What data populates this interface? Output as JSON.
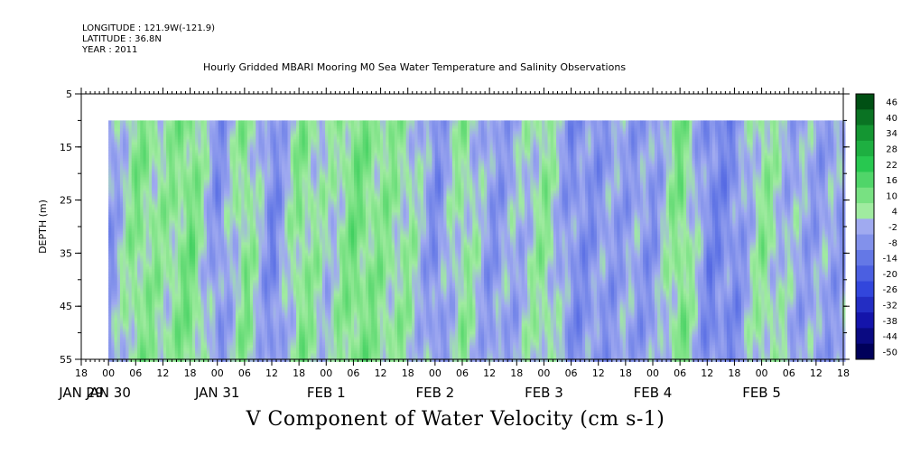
{
  "header": {
    "longitude": "LONGITUDE : 121.9W(-121.9)",
    "latitude": "LATITUDE : 36.8N",
    "year": "YEAR : 2011",
    "title": "Hourly Gridded MBARI Mooring M0 Sea Water Temperature and Salinity Observations"
  },
  "footer": {
    "variable": "V Component of Water Velocity (cm s-1)"
  },
  "chart_data": {
    "type": "heatmap",
    "title": "Hourly Gridded MBARI Mooring M0 Sea Water Temperature and Salinity Observations",
    "ylabel": "DEPTH (m)",
    "xlabel": "",
    "ylim": [
      5,
      55
    ],
    "y_inverted": true,
    "y_ticks": [
      5,
      15,
      25,
      35,
      45,
      55
    ],
    "y_data_range": [
      10,
      55
    ],
    "x_start": "JAN 29 18:00",
    "x_end": "FEB 5 18:00",
    "x_data_start": "JAN 30 00:00",
    "x_data_end": "FEB 5 18:00",
    "x_hour_labels": [
      "18",
      "00",
      "06",
      "12",
      "18",
      "00",
      "06",
      "12",
      "18",
      "00",
      "06",
      "12",
      "18",
      "00",
      "06",
      "12",
      "18",
      "00",
      "06",
      "12",
      "18",
      "00",
      "06",
      "12",
      "18",
      "00",
      "06",
      "12",
      "18"
    ],
    "x_day_labels": [
      {
        "label": "JAN 29",
        "hour": 0
      },
      {
        "label": "JAN 30",
        "hour": 6
      },
      {
        "label": "JAN 31",
        "hour": 30
      },
      {
        "label": "FEB  1",
        "hour": 54
      },
      {
        "label": "FEB  2",
        "hour": 78
      },
      {
        "label": "FEB  3",
        "hour": 102
      },
      {
        "label": "FEB  4",
        "hour": 126
      },
      {
        "label": "FEB  5",
        "hour": 150
      }
    ],
    "colorbar": {
      "labels": [
        "46",
        "40",
        "34",
        "28",
        "22",
        "16",
        "10",
        "4",
        "-2",
        "-8",
        "-14",
        "-20",
        "-26",
        "-32",
        "-38",
        "-44",
        "-50"
      ],
      "min": -50,
      "max": 46
    },
    "field_hourly_mean": [
      {
        "hour": 6,
        "v": -6
      },
      {
        "hour": 12,
        "v": 8
      },
      {
        "hour": 18,
        "v": 4
      },
      {
        "hour": 24,
        "v": 10
      },
      {
        "hour": 30,
        "v": -8
      },
      {
        "hour": 36,
        "v": 8
      },
      {
        "hour": 42,
        "v": -10
      },
      {
        "hour": 48,
        "v": 8
      },
      {
        "hour": 54,
        "v": 0
      },
      {
        "hour": 60,
        "v": 10
      },
      {
        "hour": 66,
        "v": 6
      },
      {
        "hour": 72,
        "v": 4
      },
      {
        "hour": 78,
        "v": -8
      },
      {
        "hour": 84,
        "v": 6
      },
      {
        "hour": 90,
        "v": -6
      },
      {
        "hour": 96,
        "v": -2
      },
      {
        "hour": 102,
        "v": 6
      },
      {
        "hour": 108,
        "v": -8
      },
      {
        "hour": 114,
        "v": -6
      },
      {
        "hour": 120,
        "v": -4
      },
      {
        "hour": 126,
        "v": -6
      },
      {
        "hour": 132,
        "v": 10
      },
      {
        "hour": 138,
        "v": -10
      },
      {
        "hour": 144,
        "v": -8
      },
      {
        "hour": 150,
        "v": 6
      },
      {
        "hour": 156,
        "v": -2
      },
      {
        "hour": 162,
        "v": -4
      }
    ]
  }
}
